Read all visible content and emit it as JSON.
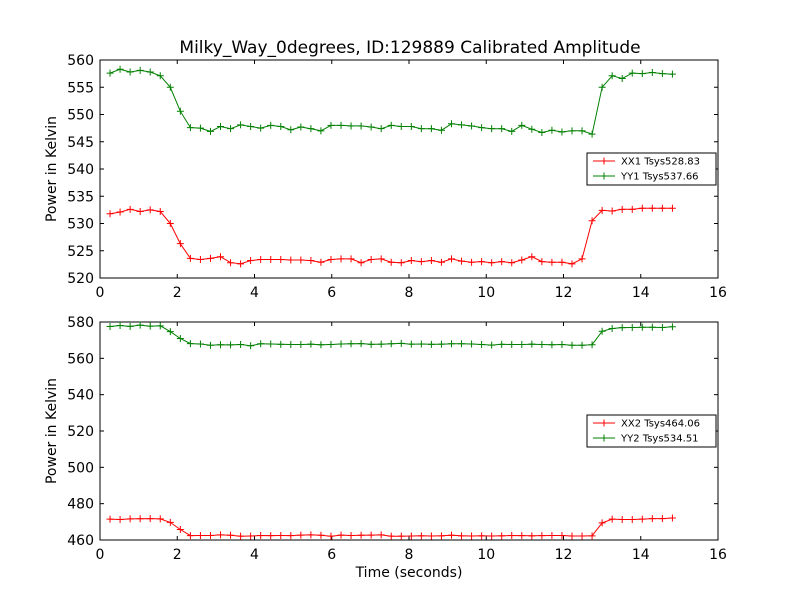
{
  "chart_data": [
    {
      "type": "line",
      "title": "Milky_Way_0degrees, ID:129889 Calibrated Amplitude",
      "xlabel": "",
      "ylabel": "Power in Kelvin",
      "xlim": [
        0,
        16
      ],
      "ylim": [
        520,
        560
      ],
      "xticks": [
        0,
        2,
        4,
        6,
        8,
        10,
        12,
        14,
        16
      ],
      "yticks": [
        520,
        525,
        530,
        535,
        540,
        545,
        550,
        555,
        560
      ],
      "legend_position": "center-right",
      "grid": false,
      "series": [
        {
          "name": "XX1 Tsys528.83",
          "color": "#ff0000",
          "x": [
            0.26,
            0.52,
            0.78,
            1.04,
            1.3,
            1.56,
            1.82,
            2.08,
            2.34,
            2.6,
            2.86,
            3.12,
            3.38,
            3.64,
            3.9,
            4.16,
            4.42,
            4.68,
            4.94,
            5.2,
            5.46,
            5.72,
            5.98,
            6.24,
            6.5,
            6.76,
            7.02,
            7.28,
            7.54,
            7.8,
            8.06,
            8.32,
            8.58,
            8.84,
            9.1,
            9.36,
            9.62,
            9.88,
            10.14,
            10.4,
            10.66,
            10.92,
            11.18,
            11.44,
            11.7,
            11.96,
            12.22,
            12.48,
            12.74,
            13.0,
            13.26,
            13.52,
            13.78,
            14.04,
            14.3,
            14.56,
            14.82
          ],
          "y": [
            531.8,
            532.1,
            532.6,
            532.2,
            532.5,
            532.2,
            530.0,
            526.3,
            523.6,
            523.4,
            523.6,
            523.9,
            522.8,
            522.6,
            523.2,
            523.4,
            523.4,
            523.4,
            523.3,
            523.3,
            523.2,
            522.9,
            523.4,
            523.5,
            523.5,
            522.8,
            523.4,
            523.5,
            522.9,
            522.8,
            523.2,
            523.0,
            523.2,
            522.9,
            523.5,
            523.1,
            522.9,
            523.0,
            522.8,
            523.0,
            522.8,
            523.3,
            523.9,
            523.0,
            522.9,
            522.9,
            522.6,
            523.5,
            530.5,
            532.4,
            532.3,
            532.6,
            532.6,
            532.8,
            532.8,
            532.8,
            532.8
          ]
        },
        {
          "name": "YY1 Tsys537.66",
          "color": "#008000",
          "x": [
            0.26,
            0.52,
            0.78,
            1.04,
            1.3,
            1.56,
            1.82,
            2.08,
            2.34,
            2.6,
            2.86,
            3.12,
            3.38,
            3.64,
            3.9,
            4.16,
            4.42,
            4.68,
            4.94,
            5.2,
            5.46,
            5.72,
            5.98,
            6.24,
            6.5,
            6.76,
            7.02,
            7.28,
            7.54,
            7.8,
            8.06,
            8.32,
            8.58,
            8.84,
            9.1,
            9.36,
            9.62,
            9.88,
            10.14,
            10.4,
            10.66,
            10.92,
            11.18,
            11.44,
            11.7,
            11.96,
            12.22,
            12.48,
            12.74,
            13.0,
            13.26,
            13.52,
            13.78,
            14.04,
            14.3,
            14.56,
            14.82
          ],
          "y": [
            557.6,
            558.3,
            557.8,
            558.1,
            557.8,
            557.1,
            555.0,
            550.6,
            547.6,
            547.5,
            546.9,
            547.8,
            547.4,
            548.1,
            547.8,
            547.5,
            548.0,
            547.8,
            547.2,
            547.7,
            547.4,
            547.0,
            548.0,
            548.0,
            547.9,
            547.9,
            547.7,
            547.4,
            548.0,
            547.8,
            547.8,
            547.4,
            547.4,
            547.1,
            548.3,
            548.1,
            547.9,
            547.6,
            547.4,
            547.4,
            546.9,
            548.0,
            547.3,
            546.7,
            547.1,
            546.8,
            547.0,
            547.0,
            546.4,
            555.0,
            557.1,
            556.6,
            557.6,
            557.5,
            557.7,
            557.5,
            557.4
          ]
        }
      ]
    },
    {
      "type": "line",
      "title": "",
      "xlabel": "Time (seconds)",
      "ylabel": "Power in Kelvin",
      "xlim": [
        0,
        16
      ],
      "ylim": [
        460,
        580
      ],
      "xticks": [
        0,
        2,
        4,
        6,
        8,
        10,
        12,
        14,
        16
      ],
      "yticks": [
        460,
        480,
        500,
        520,
        540,
        560,
        580
      ],
      "legend_position": "center-right",
      "grid": false,
      "series": [
        {
          "name": "XX2 Tsys464.06",
          "color": "#ff0000",
          "x": [
            0.26,
            0.52,
            0.78,
            1.04,
            1.3,
            1.56,
            1.82,
            2.08,
            2.34,
            2.6,
            2.86,
            3.12,
            3.38,
            3.64,
            3.9,
            4.16,
            4.42,
            4.68,
            4.94,
            5.2,
            5.46,
            5.72,
            5.98,
            6.24,
            6.5,
            6.76,
            7.02,
            7.28,
            7.54,
            7.8,
            8.06,
            8.32,
            8.58,
            8.84,
            9.1,
            9.36,
            9.62,
            9.88,
            10.14,
            10.4,
            10.66,
            10.92,
            11.18,
            11.44,
            11.7,
            11.96,
            12.22,
            12.48,
            12.74,
            13.0,
            13.26,
            13.52,
            13.78,
            14.04,
            14.3,
            14.56,
            14.82
          ],
          "y": [
            471.5,
            471.3,
            471.6,
            471.7,
            471.8,
            471.6,
            469.7,
            465.8,
            462.4,
            462.5,
            462.5,
            462.8,
            462.6,
            462.1,
            462.2,
            462.5,
            462.4,
            462.5,
            462.4,
            462.7,
            462.8,
            462.6,
            462.1,
            462.7,
            462.5,
            462.6,
            462.7,
            462.8,
            462.1,
            462.1,
            462.2,
            462.3,
            462.2,
            462.3,
            462.6,
            462.3,
            462.2,
            462.3,
            462.2,
            462.3,
            462.5,
            462.4,
            462.3,
            462.4,
            462.5,
            462.5,
            462.2,
            462.2,
            462.3,
            469.4,
            471.5,
            471.3,
            471.3,
            471.5,
            471.8,
            471.8,
            472.1
          ]
        },
        {
          "name": "YY2 Tsys534.51",
          "color": "#008000",
          "x": [
            0.26,
            0.52,
            0.78,
            1.04,
            1.3,
            1.56,
            1.82,
            2.08,
            2.34,
            2.6,
            2.86,
            3.12,
            3.38,
            3.64,
            3.9,
            4.16,
            4.42,
            4.68,
            4.94,
            5.2,
            5.46,
            5.72,
            5.98,
            6.24,
            6.5,
            6.76,
            7.02,
            7.28,
            7.54,
            7.8,
            8.06,
            8.32,
            8.58,
            8.84,
            9.1,
            9.36,
            9.62,
            9.88,
            10.14,
            10.4,
            10.66,
            10.92,
            11.18,
            11.44,
            11.7,
            11.96,
            12.22,
            12.48,
            12.74,
            13.0,
            13.26,
            13.52,
            13.78,
            14.04,
            14.3,
            14.56,
            14.82
          ],
          "y": [
            577.5,
            578.1,
            577.6,
            578.3,
            577.7,
            577.9,
            574.7,
            570.9,
            568.1,
            567.9,
            567.2,
            567.5,
            567.4,
            567.6,
            566.9,
            568.0,
            567.9,
            567.7,
            567.6,
            567.6,
            567.8,
            567.5,
            567.6,
            567.9,
            568.0,
            568.1,
            567.7,
            567.8,
            568.0,
            568.2,
            567.8,
            567.9,
            567.7,
            567.8,
            568.0,
            568.0,
            567.9,
            567.6,
            567.3,
            567.7,
            567.6,
            567.6,
            567.8,
            567.6,
            567.5,
            567.6,
            567.2,
            567.2,
            567.5,
            574.9,
            576.4,
            576.9,
            577.0,
            577.1,
            577.1,
            577.0,
            577.4
          ]
        }
      ]
    }
  ]
}
